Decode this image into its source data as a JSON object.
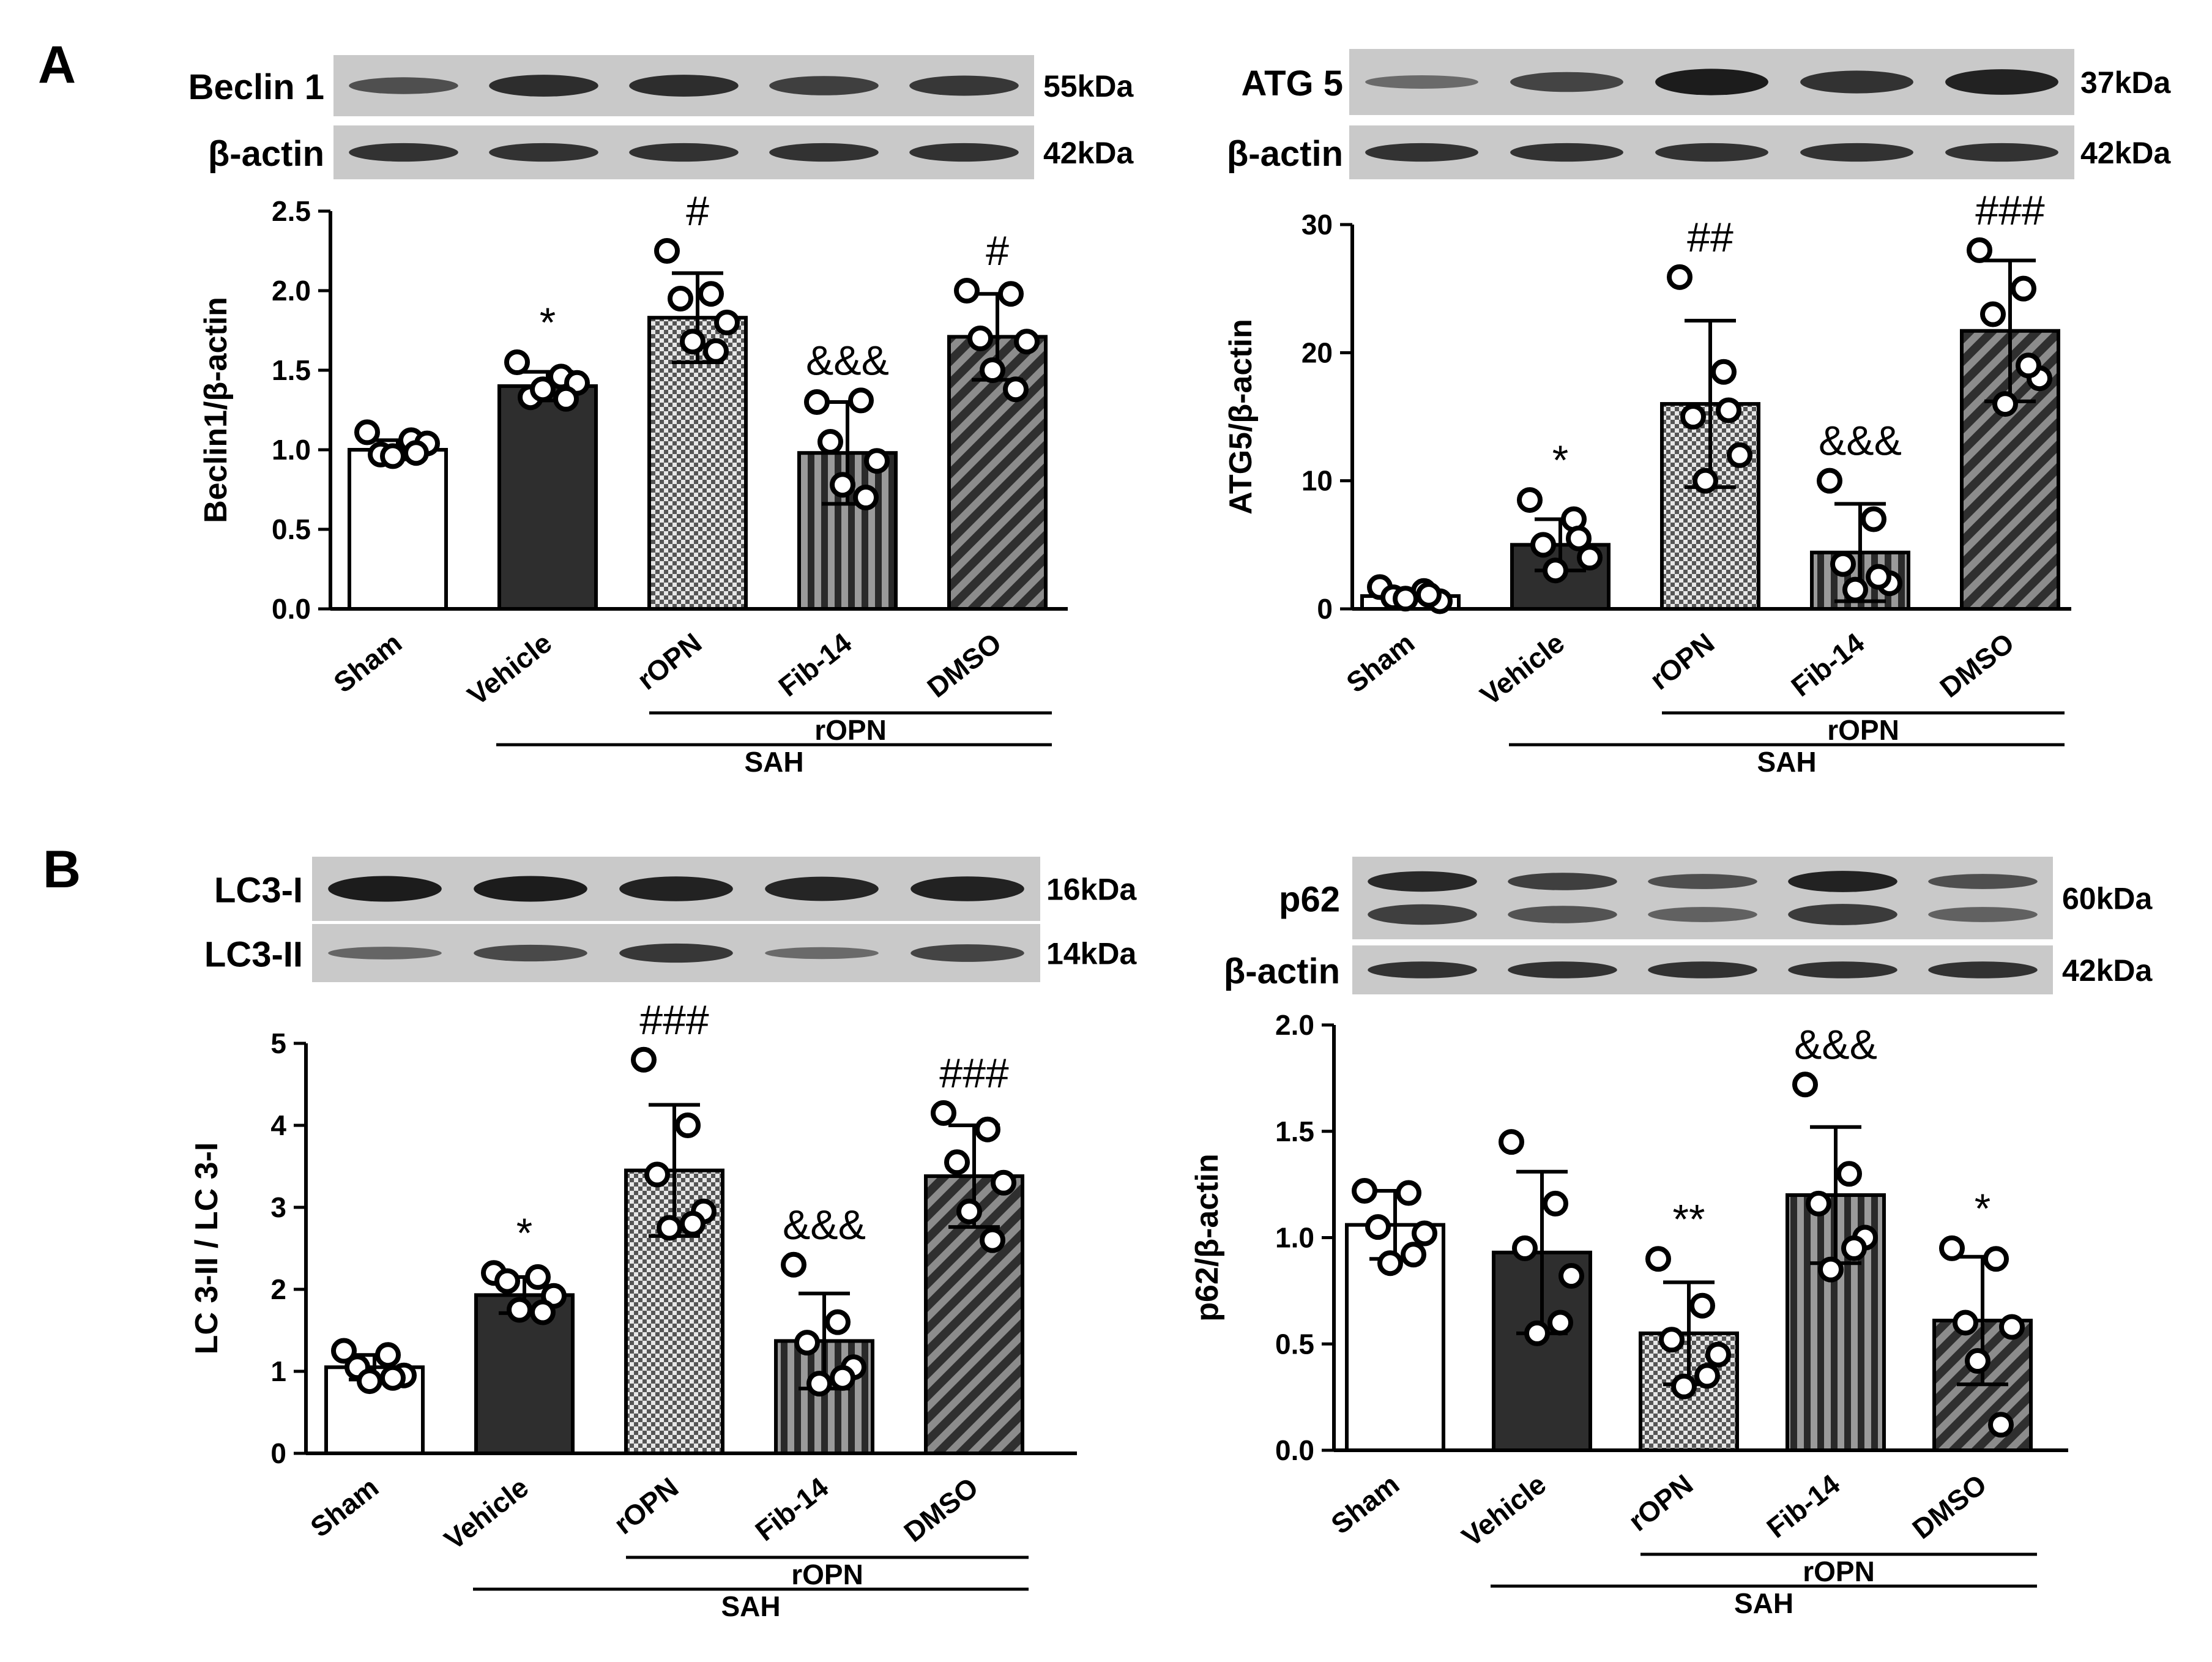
{
  "figure": {
    "panel_labels": [
      "A",
      "B"
    ],
    "colors": {
      "axis": "#000000",
      "sham_fill": "#ffffff",
      "vehicle_fill": "#2e2e2e",
      "checker_dark": "#555555",
      "checker_light": "#e6e6e6",
      "stripe_dark": "#2a2a2a",
      "stripe_light": "#9a9a9a",
      "diag_dark": "#2f2f2f",
      "diag_light": "#8c8c8c",
      "blot_background": "#c9c9c9",
      "band": "#1c1c1c"
    }
  },
  "chart_data": [
    {
      "id": "beclin1",
      "type": "bar",
      "title": "",
      "ylabel": "Beclin1/β-actin",
      "xlabel": "",
      "ylim": [
        0,
        2.5
      ],
      "yticks": [
        0.0,
        0.5,
        1.0,
        1.5,
        2.0,
        2.5
      ],
      "ytick_labels": [
        "0.0",
        "0.5",
        "1.0",
        "1.5",
        "2.0",
        "2.5"
      ],
      "categories": [
        "Sham",
        "Vehicle",
        "rOPN",
        "Fib-14",
        "DMSO"
      ],
      "patterns": [
        "white",
        "dark",
        "checker",
        "vstripe",
        "diagonal"
      ],
      "values": [
        1.0,
        1.4,
        1.83,
        0.98,
        1.71
      ],
      "sd": [
        0.06,
        0.09,
        0.28,
        0.32,
        0.27
      ],
      "points": [
        [
          1.11,
          1.06,
          0.97,
          1.04,
          0.96,
          0.98
        ],
        [
          1.55,
          1.46,
          1.33,
          1.42,
          1.38,
          1.32
        ],
        [
          2.25,
          1.98,
          1.95,
          1.8,
          1.68,
          1.62
        ],
        [
          1.3,
          1.31,
          1.05,
          0.93,
          0.78,
          0.7
        ],
        [
          2.0,
          1.98,
          1.7,
          1.68,
          1.5,
          1.38
        ]
      ],
      "annotations": [
        "",
        "*",
        "#",
        "&&&",
        "#"
      ],
      "groups": [
        {
          "label": "rOPN",
          "from": 2,
          "to": 4
        },
        {
          "label": "SAH",
          "from": 1,
          "to": 4
        }
      ],
      "blot": {
        "rows": [
          {
            "label": "Beclin 1",
            "kda": "55kDa",
            "intensity": [
              0.55,
              0.85,
              0.85,
              0.7,
              0.75
            ],
            "double": false
          },
          {
            "label": "β-actin",
            "kda": "42kDa",
            "intensity": [
              0.8,
              0.8,
              0.8,
              0.8,
              0.8
            ],
            "double": false
          }
        ]
      }
    },
    {
      "id": "atg5",
      "type": "bar",
      "title": "",
      "ylabel": "ATG5/β-actin",
      "xlabel": "",
      "ylim": [
        0,
        30
      ],
      "yticks": [
        0,
        10,
        20,
        30
      ],
      "ytick_labels": [
        "0",
        "10",
        "20",
        "30"
      ],
      "categories": [
        "Sham",
        "Vehicle",
        "rOPN",
        "Fib-14",
        "DMSO"
      ],
      "patterns": [
        "white",
        "dark",
        "checker",
        "vstripe",
        "diagonal"
      ],
      "values": [
        1.0,
        5.0,
        16.0,
        4.4,
        21.7
      ],
      "sd": [
        0.3,
        2.0,
        6.5,
        3.8,
        5.5
      ],
      "points": [
        [
          1.7,
          1.4,
          0.9,
          0.6,
          0.8,
          1.1
        ],
        [
          8.5,
          7.0,
          5.0,
          4.0,
          3.0,
          5.5
        ],
        [
          25.9,
          18.5,
          15.0,
          12.0,
          10.0,
          15.5
        ],
        [
          10.0,
          7.0,
          3.5,
          2.0,
          1.5,
          2.5
        ],
        [
          28.0,
          25.0,
          23.0,
          18.0,
          16.0,
          19.0
        ]
      ],
      "annotations": [
        "",
        "*",
        "##",
        "&&&",
        "###"
      ],
      "groups": [
        {
          "label": "rOPN",
          "from": 2,
          "to": 4
        },
        {
          "label": "SAH",
          "from": 1,
          "to": 4
        }
      ],
      "blot": {
        "rows": [
          {
            "label": "ATG 5",
            "kda": "37kDa",
            "intensity": [
              0.3,
              0.65,
              1.0,
              0.8,
              0.95
            ],
            "double": false
          },
          {
            "label": "β-actin",
            "kda": "42kDa",
            "intensity": [
              0.8,
              0.8,
              0.8,
              0.8,
              0.8
            ],
            "double": false
          }
        ]
      }
    },
    {
      "id": "lc3",
      "type": "bar",
      "title": "",
      "ylabel": "LC 3-II / LC 3-I",
      "xlabel": "",
      "ylim": [
        0,
        5
      ],
      "yticks": [
        0,
        1,
        2,
        3,
        4,
        5
      ],
      "ytick_labels": [
        "0",
        "1",
        "2",
        "3",
        "4",
        "5"
      ],
      "categories": [
        "Sham",
        "Vehicle",
        "rOPN",
        "Fib-14",
        "DMSO"
      ],
      "patterns": [
        "white",
        "dark",
        "checker",
        "vstripe",
        "diagonal"
      ],
      "values": [
        1.05,
        1.93,
        3.45,
        1.37,
        3.38
      ],
      "sd": [
        0.15,
        0.22,
        0.8,
        0.58,
        0.62
      ],
      "points": [
        [
          1.25,
          1.2,
          1.05,
          0.95,
          0.88,
          0.92
        ],
        [
          2.2,
          2.15,
          2.1,
          1.92,
          1.75,
          1.72
        ],
        [
          4.8,
          4.0,
          3.4,
          2.95,
          2.75,
          2.8
        ],
        [
          2.3,
          1.6,
          1.35,
          1.05,
          0.85,
          0.92
        ],
        [
          4.15,
          3.95,
          3.55,
          3.3,
          2.95,
          2.6
        ]
      ],
      "annotations": [
        "",
        "*",
        "###",
        "&&&",
        "###"
      ],
      "groups": [
        {
          "label": "rOPN",
          "from": 2,
          "to": 4
        },
        {
          "label": "SAH",
          "from": 1,
          "to": 4
        }
      ],
      "blot": {
        "rows": [
          {
            "label": "LC3-I",
            "kda": "16kDa",
            "intensity": [
              1.0,
              1.0,
              0.95,
              0.92,
              0.95
            ],
            "double": false
          },
          {
            "label": "LC3-II",
            "kda": "14kDa",
            "intensity": [
              0.35,
              0.6,
              0.75,
              0.3,
              0.65
            ],
            "double": false
          }
        ]
      }
    },
    {
      "id": "p62",
      "type": "bar",
      "title": "",
      "ylabel": "p62/β-actin",
      "xlabel": "",
      "ylim": [
        0,
        2.0
      ],
      "yticks": [
        0.0,
        0.5,
        1.0,
        1.5,
        2.0
      ],
      "ytick_labels": [
        "0.0",
        "0.5",
        "1.0",
        "1.5",
        "2.0"
      ],
      "categories": [
        "Sham",
        "Vehicle",
        "rOPN",
        "Fib-14",
        "DMSO"
      ],
      "patterns": [
        "white",
        "dark",
        "checker",
        "vstripe",
        "diagonal"
      ],
      "values": [
        1.06,
        0.93,
        0.55,
        1.2,
        0.61
      ],
      "sd": [
        0.16,
        0.38,
        0.24,
        0.32,
        0.3
      ],
      "points": [
        [
          1.22,
          1.21,
          1.05,
          1.02,
          0.88,
          0.92
        ],
        [
          1.45,
          1.16,
          0.95,
          0.82,
          0.55,
          0.6
        ],
        [
          0.9,
          0.68,
          0.52,
          0.45,
          0.3,
          0.35
        ],
        [
          1.72,
          1.3,
          1.16,
          1.0,
          0.85,
          0.95
        ],
        [
          0.95,
          0.9,
          0.6,
          0.58,
          0.42,
          0.12
        ]
      ],
      "annotations": [
        "",
        "",
        "**",
        "&&&",
        "*"
      ],
      "groups": [
        {
          "label": "rOPN",
          "from": 2,
          "to": 4
        },
        {
          "label": "SAH",
          "from": 1,
          "to": 4
        }
      ],
      "blot": {
        "rows": [
          {
            "label": "p62",
            "kda": "60kDa",
            "intensity": [
              0.9,
              0.7,
              0.55,
              0.95,
              0.55
            ],
            "double": true
          },
          {
            "label": "β-actin",
            "kda": "42kDa",
            "intensity": [
              0.8,
              0.8,
              0.8,
              0.8,
              0.8
            ],
            "double": false
          }
        ]
      }
    }
  ]
}
